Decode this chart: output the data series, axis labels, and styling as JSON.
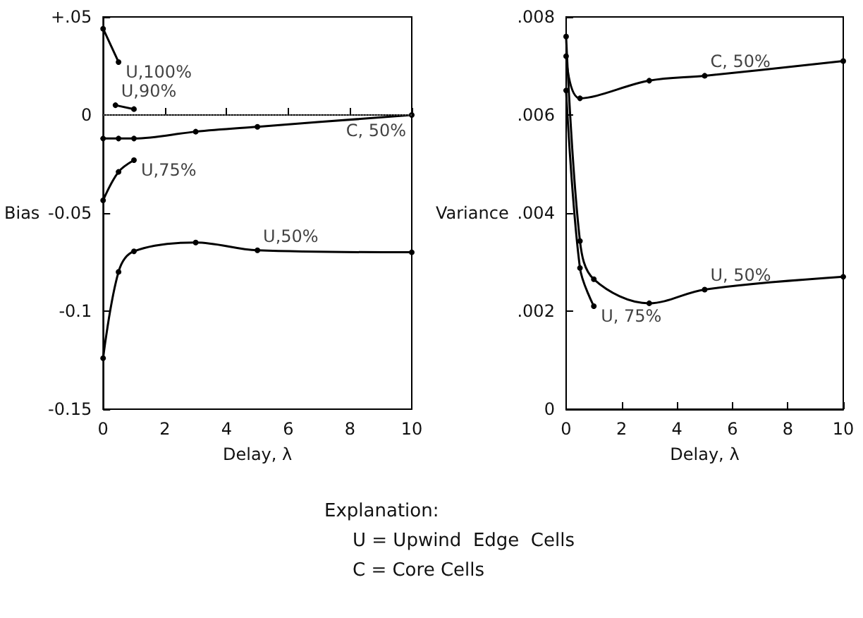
{
  "chart_data": [
    {
      "type": "line",
      "xlabel": "Delay, λ",
      "ylabel": "Bias",
      "xlim": [
        0,
        10
      ],
      "xticks": [
        0,
        2,
        4,
        6,
        8,
        10
      ],
      "ylim": [
        -0.15,
        0.05
      ],
      "yticks": [
        {
          "value": 0.05,
          "label": "+.05"
        },
        0,
        -0.05,
        -0.1,
        -0.15
      ],
      "grid": false,
      "marker": "circle",
      "line_style": "solid",
      "ref_lines": [
        {
          "axis": "y",
          "value": 0,
          "line_style": "dotted",
          "color": "#555555"
        }
      ],
      "series": [
        {
          "color": "#000000",
          "x": [
            0,
            0.5
          ],
          "values": [
            0.044,
            0.027
          ]
        },
        {
          "color": "#000000",
          "x": [
            0.4,
            1
          ],
          "values": [
            0.005,
            0.003
          ]
        },
        {
          "color": "#000000",
          "x": [
            0,
            0.5,
            1,
            3,
            5,
            10
          ],
          "values": [
            -0.012,
            -0.012,
            -0.012,
            -0.0085,
            -0.006,
            0
          ]
        },
        {
          "color": "#000000",
          "x": [
            0,
            0.5,
            1
          ],
          "values": [
            -0.0435,
            -0.029,
            -0.023
          ]
        },
        {
          "color": "#000000",
          "x": [
            0,
            0.5,
            1,
            3,
            5,
            10
          ],
          "values": [
            -0.124,
            -0.08,
            -0.0695,
            -0.065,
            -0.069,
            -0.07
          ]
        }
      ],
      "annotations": [
        {
          "text": "U,100%",
          "x": 0.5,
          "y": 0.027
        },
        {
          "text": "U,90%",
          "x": 0.4,
          "y": 0.005
        },
        {
          "text": "C, 50%",
          "x": 10,
          "y": 0
        },
        {
          "text": "U,75%",
          "x": 1,
          "y": -0.023
        },
        {
          "text": "U,50%",
          "x": 5,
          "y": -0.069
        },
        "Explanation:",
        "U = Upwind  Edge  Cells",
        "C = Core Cells"
      ]
    },
    {
      "type": "line",
      "xlabel": "Delay, λ",
      "ylabel": "Variance",
      "xlim": [
        0,
        10
      ],
      "xticks": [
        0,
        2,
        4,
        6,
        8,
        10
      ],
      "ylim": [
        0,
        0.008
      ],
      "yticks": [
        {
          "value": 0,
          "label": "0"
        },
        {
          "value": 0.002,
          "label": ".002"
        },
        {
          "value": 0.004,
          "label": ".004"
        },
        {
          "value": 0.006,
          "label": ".006"
        },
        {
          "value": 0.008,
          "label": ".008"
        }
      ],
      "grid": false,
      "marker": "circle",
      "line_style": "solid",
      "series": [
        {
          "color": "#000000",
          "x": [
            0,
            0.5,
            3,
            5,
            10
          ],
          "values": [
            0.0072,
            0.00634,
            0.0067,
            0.0068,
            0.0071
          ]
        },
        {
          "color": "#000000",
          "x": [
            0,
            0.5,
            1,
            3,
            5,
            10
          ],
          "values": [
            0.0076,
            0.00343,
            0.00265,
            0.00216,
            0.00244,
            0.0027
          ]
        },
        {
          "color": "#000000",
          "x": [
            0,
            0.5,
            1
          ],
          "values": [
            0.0065,
            0.00288,
            0.0021
          ]
        }
      ],
      "annotations": [
        {
          "text": "C, 50%",
          "x": 5,
          "y": 0.0068
        },
        {
          "text": "U, 50%",
          "x": 5,
          "y": 0.00244
        },
        {
          "text": "U, 75%",
          "x": 1,
          "y": 0.0021
        }
      ]
    }
  ]
}
